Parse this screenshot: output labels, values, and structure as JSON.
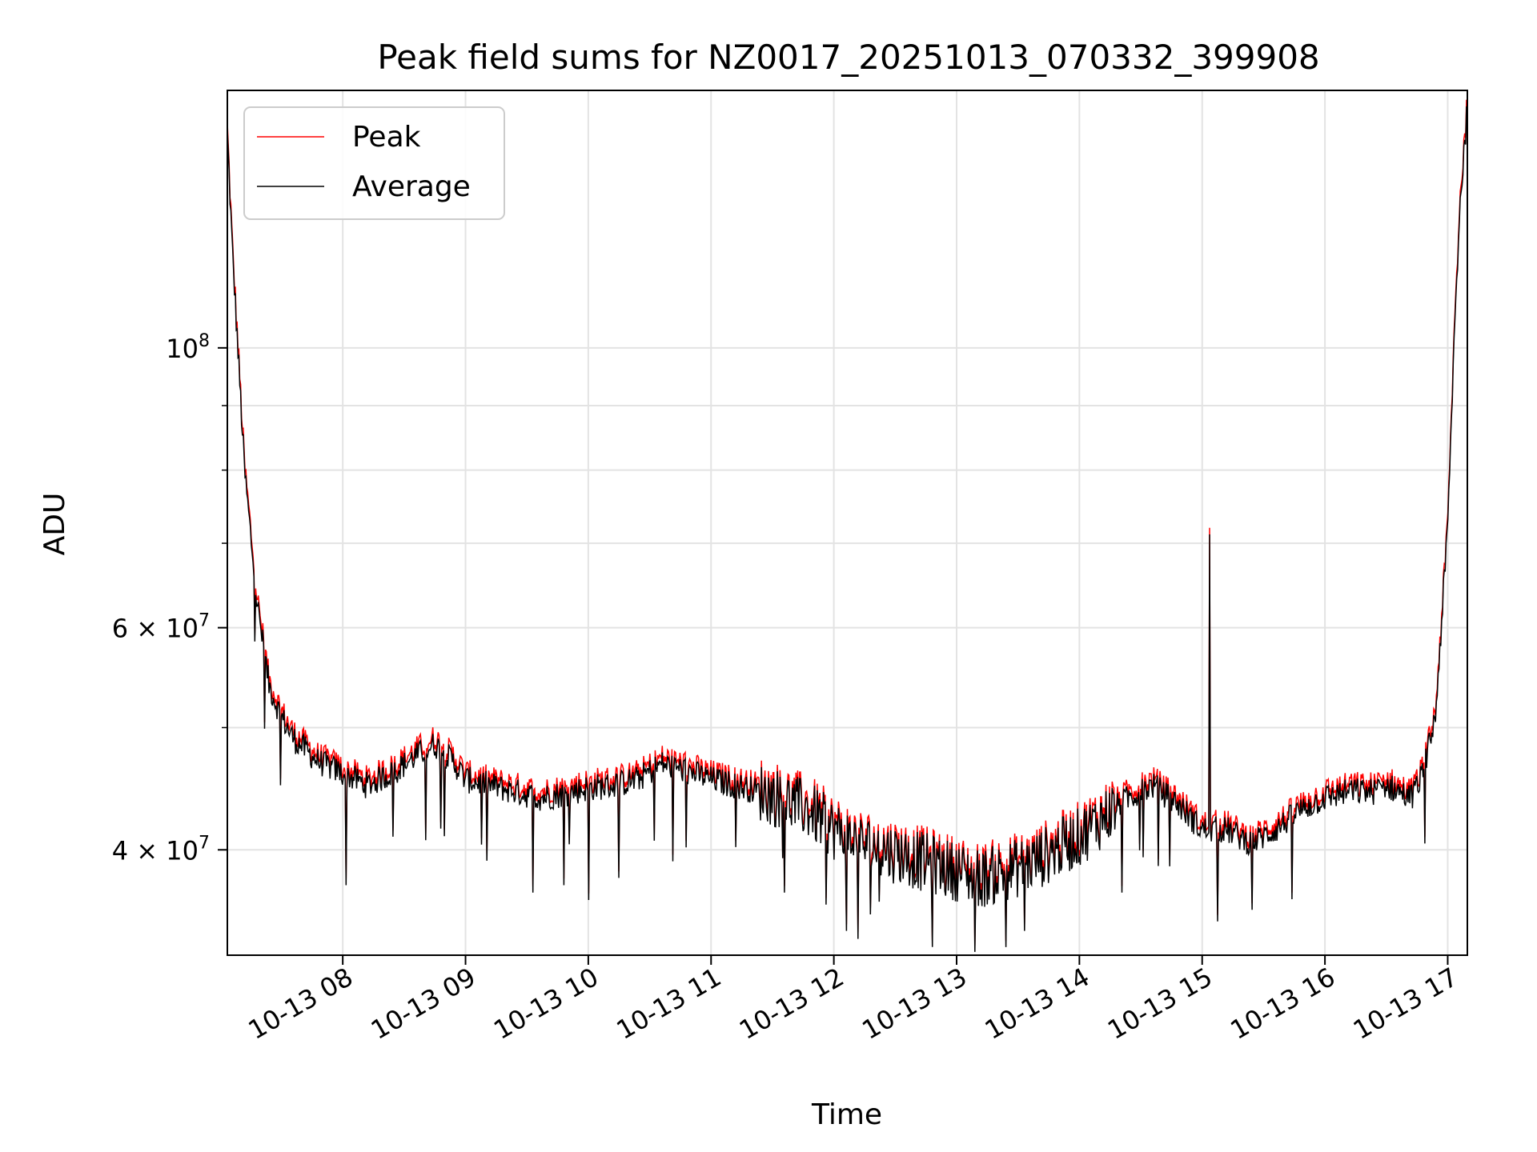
{
  "chart_data": {
    "type": "line",
    "title": "Peak field sums for NZ0017_20251013_070332_399908",
    "xlabel": "Time",
    "ylabel": "ADU",
    "yscale": "log",
    "ylim": [
      33000000,
      160000000
    ],
    "xlim_hours": [
      7.06,
      17.16
    ],
    "grid": true,
    "legend": {
      "position": "top-left",
      "entries": [
        "Peak",
        "Average"
      ]
    },
    "x_ticks": [
      {
        "hour": 8,
        "label": "10-13 08"
      },
      {
        "hour": 9,
        "label": "10-13 09"
      },
      {
        "hour": 10,
        "label": "10-13 10"
      },
      {
        "hour": 11,
        "label": "10-13 11"
      },
      {
        "hour": 12,
        "label": "10-13 12"
      },
      {
        "hour": 13,
        "label": "10-13 13"
      },
      {
        "hour": 14,
        "label": "10-13 14"
      },
      {
        "hour": 15,
        "label": "10-13 15"
      },
      {
        "hour": 16,
        "label": "10-13 16"
      },
      {
        "hour": 17,
        "label": "10-13 17"
      }
    ],
    "y_ticks": [
      {
        "value": 40000000,
        "mantissa": "4",
        "exponent": "7"
      },
      {
        "value": 60000000,
        "mantissa": "6",
        "exponent": "7"
      },
      {
        "value": 100000000,
        "mantissa": "",
        "exponent": "8"
      }
    ],
    "y_minor_ticks": [
      50000000,
      70000000,
      80000000,
      90000000
    ],
    "series": [
      {
        "name": "Peak",
        "color": "#ff0000",
        "offset_ratio": 1.012,
        "spike": {
          "hour": 15.06,
          "value": 72000000
        }
      },
      {
        "name": "Average",
        "color": "#000000",
        "hours": [
          7.06,
          7.1,
          7.2,
          7.3,
          7.4,
          7.5,
          7.6,
          7.7,
          7.8,
          7.9,
          8.0,
          8.2,
          8.4,
          8.6,
          8.75,
          8.9,
          9.0,
          9.2,
          9.4,
          9.6,
          9.8,
          10.0,
          10.2,
          10.4,
          10.6,
          10.8,
          11.0,
          11.2,
          11.4,
          11.6,
          11.8,
          12.0,
          12.2,
          12.4,
          12.6,
          12.8,
          13.0,
          13.2,
          13.4,
          13.6,
          13.8,
          14.0,
          14.2,
          14.4,
          14.6,
          14.8,
          15.0,
          15.2,
          15.4,
          15.6,
          15.8,
          16.0,
          16.2,
          16.4,
          16.5,
          16.6,
          16.7,
          16.8,
          16.9,
          17.0,
          17.05,
          17.1,
          17.16
        ],
        "values": [
          148000000,
          120000000,
          80000000,
          63000000,
          54000000,
          51000000,
          49000000,
          48000000,
          47000000,
          46500000,
          46000000,
          45000000,
          46000000,
          47500000,
          48500000,
          47000000,
          45500000,
          45000000,
          44500000,
          44000000,
          44300000,
          44800000,
          45000000,
          45500000,
          46800000,
          46200000,
          45500000,
          45000000,
          44500000,
          43800000,
          43000000,
          41500000,
          40500000,
          40000000,
          39500000,
          39000000,
          38500000,
          38000000,
          38500000,
          39000000,
          40000000,
          41000000,
          42500000,
          44000000,
          45000000,
          43500000,
          41500000,
          41500000,
          40500000,
          41500000,
          43000000,
          44000000,
          44500000,
          44500000,
          45000000,
          44500000,
          44000000,
          46000000,
          51000000,
          72000000,
          100000000,
          130000000,
          155000000
        ],
        "noise_amp": 0.025,
        "dips": [
          {
            "hour": 8.03,
            "value": 37500000
          },
          {
            "hour": 9.55,
            "value": 37000000
          },
          {
            "hour": 9.8,
            "value": 37500000
          },
          {
            "hour": 10.0,
            "value": 36500000
          },
          {
            "hour": 10.25,
            "value": 38000000
          },
          {
            "hour": 11.6,
            "value": 37000000
          },
          {
            "hour": 12.1,
            "value": 34500000
          },
          {
            "hour": 12.2,
            "value": 34000000
          },
          {
            "hour": 12.8,
            "value": 33500000
          },
          {
            "hour": 13.15,
            "value": 33200000
          },
          {
            "hour": 13.55,
            "value": 34500000
          },
          {
            "hour": 14.35,
            "value": 37000000
          }
        ]
      }
    ]
  }
}
